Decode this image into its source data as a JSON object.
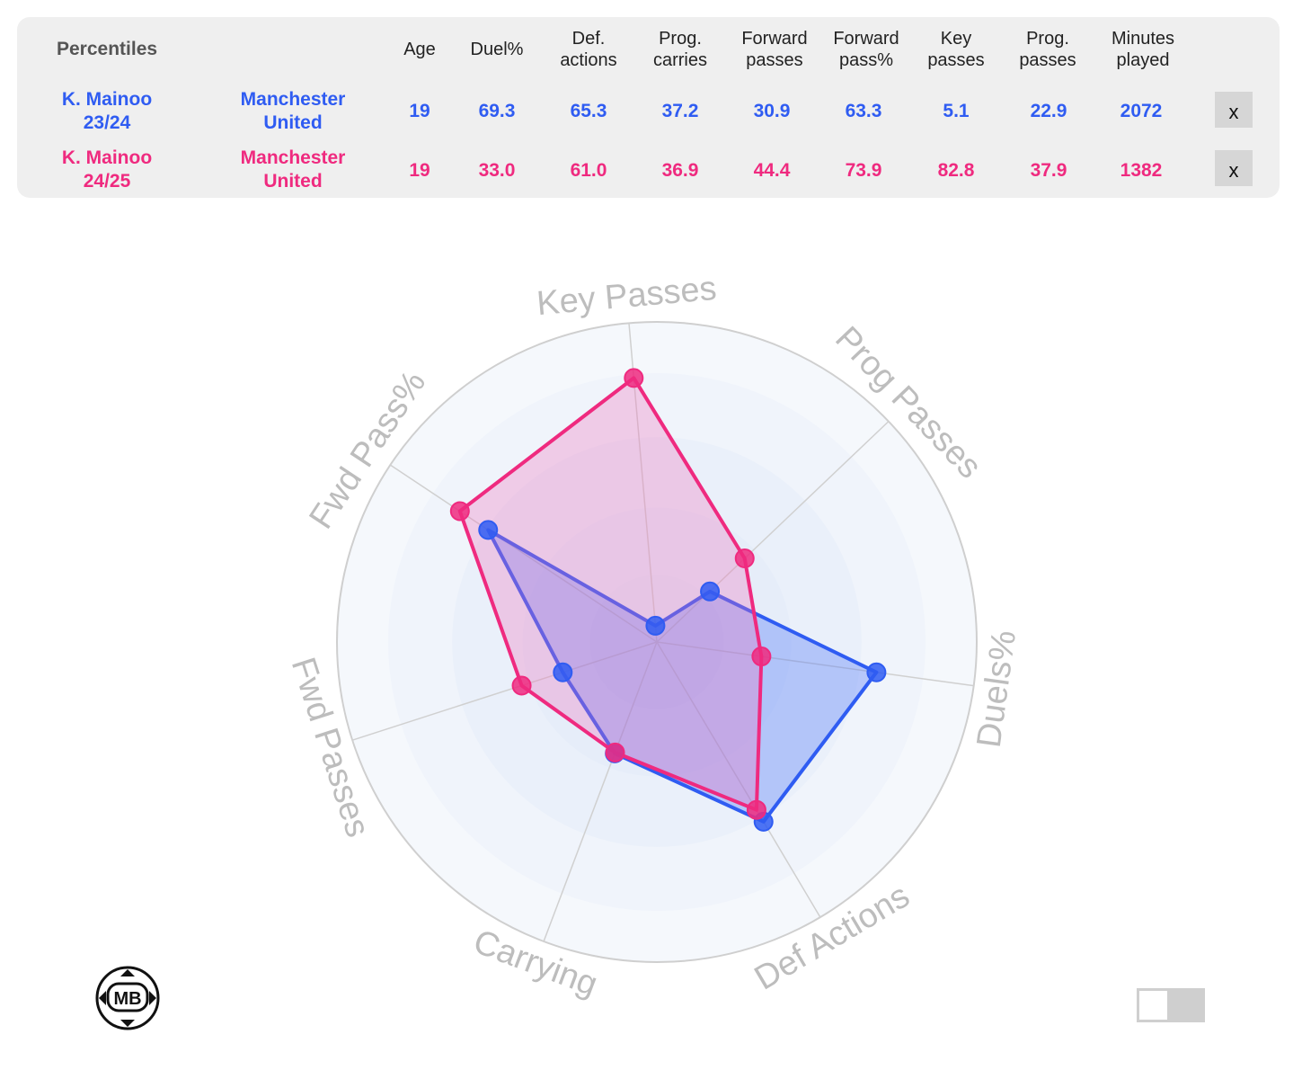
{
  "table": {
    "title": "Percentiles",
    "headers": {
      "age": "Age",
      "duel": "Duel%",
      "def": "Def.\nactions",
      "carries": "Prog.\ncarries",
      "fwd": "Forward\npasses",
      "fwdpct": "Forward\npass%",
      "key": "Key\npasses",
      "prog": "Prog.\npasses",
      "mins": "Minutes\nplayed"
    },
    "rows": [
      {
        "player": "K. Mainoo\n23/24",
        "team": "Manchester\nUnited",
        "age": "19",
        "duel": "69.3",
        "def": "65.3",
        "carries": "37.2",
        "fwd": "30.9",
        "fwdpct": "63.3",
        "key": "5.1",
        "prog": "22.9",
        "mins": "2072",
        "remove": "x"
      },
      {
        "player": "K. Mainoo\n24/25",
        "team": "Manchester\nUnited",
        "age": "19",
        "duel": "33.0",
        "def": "61.0",
        "carries": "36.9",
        "fwd": "44.4",
        "fwdpct": "73.9",
        "key": "82.8",
        "prog": "37.9",
        "mins": "1382",
        "remove": "x"
      }
    ]
  },
  "chart_data": {
    "type": "radar",
    "axes": [
      "Key Passes",
      "Prog Passes",
      "Duels%",
      "Def Actions",
      "Carrying",
      "Fwd Passes",
      "Fwd Pass%"
    ],
    "range": [
      0,
      100
    ],
    "series": [
      {
        "name": "K. Mainoo 23/24",
        "color": "#2f5cf2",
        "fill": "rgba(68,110,250,0.33)",
        "values": [
          5.1,
          22.9,
          69.3,
          65.3,
          37.2,
          30.9,
          63.3
        ]
      },
      {
        "name": "K. Mainoo 24/25",
        "color": "#ef2a7f",
        "fill": "rgba(240,110,185,0.30)",
        "values": [
          82.8,
          37.9,
          33.0,
          61.0,
          36.9,
          44.4,
          73.9
        ]
      }
    ]
  },
  "colors": {
    "player1": "#2f5cf2",
    "player2": "#ef2a7f"
  },
  "logo": {
    "text": "MB"
  },
  "toggle": {
    "state": "off"
  }
}
